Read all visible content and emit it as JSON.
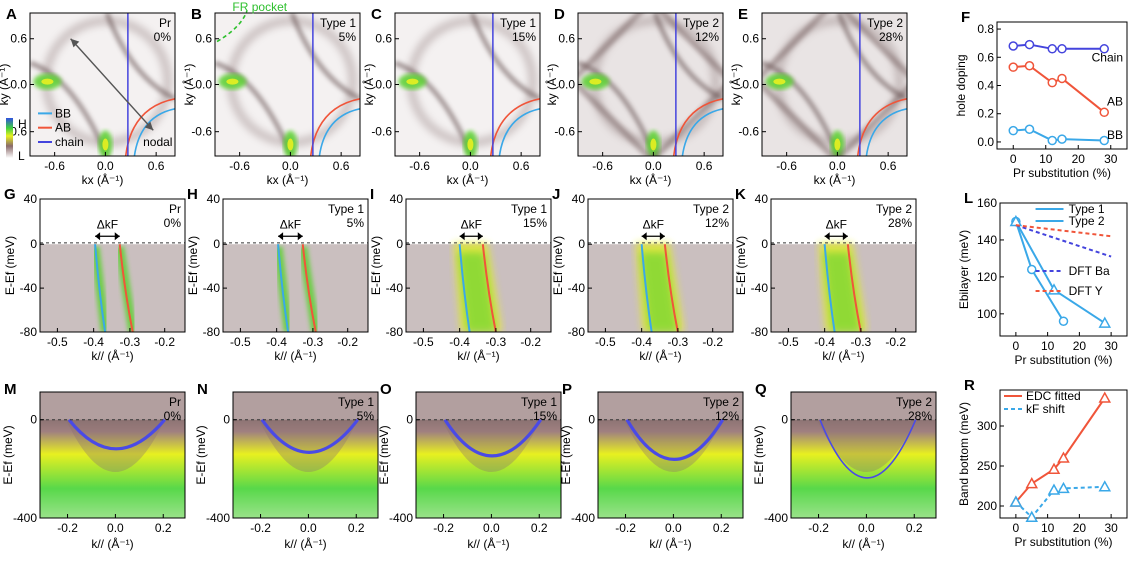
{
  "colors": {
    "bb": "#3aa8e8",
    "ab": "#f0553a",
    "chain": "#4444dd",
    "green": "#5ad12e",
    "yellow": "#e8f020",
    "dark": "#5a4040",
    "bg": "#ffffff"
  },
  "rowA": {
    "xlabel": "kx (Å⁻¹)",
    "ylabel": "ky (Å⁻¹)",
    "yticks": [
      "0.6",
      "0.0",
      "-0.6"
    ],
    "xticks": [
      "-0.6",
      "0.0",
      "0.6"
    ],
    "panels": [
      {
        "letter": "A",
        "tag1": "Pr",
        "tag2": "0%",
        "type": "pr"
      },
      {
        "letter": "B",
        "tag1": "Type 1",
        "tag2": "5%",
        "type": "t1"
      },
      {
        "letter": "C",
        "tag1": "Type 1",
        "tag2": "15%",
        "type": "t1"
      },
      {
        "letter": "D",
        "tag1": "Type 2",
        "tag2": "12%",
        "type": "t2"
      },
      {
        "letter": "E",
        "tag1": "Type 2",
        "tag2": "28%",
        "type": "t2"
      }
    ],
    "fr_pocket": "FR pocket",
    "nodal": "nodal",
    "colorbar": {
      "high": "H",
      "low": "L"
    },
    "legend": [
      "BB",
      "AB",
      "chain"
    ]
  },
  "rowG": {
    "xlabel": "k// (Å⁻¹)",
    "ylabel": "E-Ef (meV)",
    "yticks": [
      "40",
      "0",
      "-40",
      "-80"
    ],
    "xticks": [
      "-0.5",
      "-0.4",
      "-0.3",
      "-0.2"
    ],
    "dk": "ΔkF",
    "panels": [
      {
        "letter": "G",
        "tag1": "Pr",
        "tag2": "0%"
      },
      {
        "letter": "H",
        "tag1": "Type 1",
        "tag2": "5%"
      },
      {
        "letter": "I",
        "tag1": "Type 1",
        "tag2": "15%"
      },
      {
        "letter": "J",
        "tag1": "Type 2",
        "tag2": "12%"
      },
      {
        "letter": "K",
        "tag1": "Type 2",
        "tag2": "28%"
      }
    ]
  },
  "rowM": {
    "xlabel": "k// (Å⁻¹)",
    "ylabel": "E-Ef (meV)",
    "yticks": [
      "0",
      "-400"
    ],
    "xticks": [
      "-0.2",
      "0.0",
      "0.2"
    ],
    "panels": [
      {
        "letter": "M",
        "tag1": "Pr",
        "tag2": "0%"
      },
      {
        "letter": "N",
        "tag1": "Type 1",
        "tag2": "5%"
      },
      {
        "letter": "O",
        "tag1": "Type 1",
        "tag2": "15%"
      },
      {
        "letter": "P",
        "tag1": "Type 2",
        "tag2": "12%"
      },
      {
        "letter": "Q",
        "tag1": "Type 2",
        "tag2": "28%"
      }
    ]
  },
  "chart_data": [
    {
      "panel": "F",
      "type": "line",
      "xlabel": "Pr substitution (%)",
      "ylabel": "hole doping",
      "xlim": [
        -5,
        35
      ],
      "ylim": [
        -0.05,
        0.85
      ],
      "xticks": [
        "0",
        "10",
        "20",
        "30"
      ],
      "yticks": [
        "0.0",
        "0.2",
        "0.4",
        "0.6",
        "0.8"
      ],
      "series": [
        {
          "name": "Chain",
          "color": "#4444dd",
          "x": [
            0,
            5,
            12,
            15,
            28
          ],
          "y": [
            0.68,
            0.69,
            0.66,
            0.66,
            0.66
          ]
        },
        {
          "name": "AB",
          "color": "#f0553a",
          "x": [
            0,
            5,
            12,
            15,
            28
          ],
          "y": [
            0.53,
            0.54,
            0.42,
            0.45,
            0.21
          ]
        },
        {
          "name": "BB",
          "color": "#3aa8e8",
          "x": [
            0,
            5,
            12,
            15,
            28
          ],
          "y": [
            0.08,
            0.09,
            0.01,
            0.02,
            0.01
          ]
        }
      ]
    },
    {
      "panel": "L",
      "type": "line",
      "xlabel": "Pr substitution (%)",
      "ylabel": "Ebilayer (meV)",
      "xlim": [
        -5,
        35
      ],
      "ylim": [
        88,
        160
      ],
      "xticks": [
        "0",
        "10",
        "20",
        "30"
      ],
      "yticks": [
        "100",
        "120",
        "140",
        "160"
      ],
      "series": [
        {
          "name": "Type 1",
          "color": "#3aa8e8",
          "marker": "circle",
          "x": [
            0,
            5,
            15
          ],
          "y": [
            150,
            124,
            96
          ]
        },
        {
          "name": "Type 2",
          "color": "#3aa8e8",
          "marker": "triangle",
          "x": [
            0,
            12,
            28
          ],
          "y": [
            150,
            113,
            95
          ]
        },
        {
          "name": "DFT Ba",
          "color": "#4444dd",
          "dashed": true,
          "x": [
            0,
            30
          ],
          "y": [
            148,
            131
          ]
        },
        {
          "name": "DFT Y",
          "color": "#f0553a",
          "dashed": true,
          "x": [
            0,
            30
          ],
          "y": [
            148,
            142
          ]
        }
      ]
    },
    {
      "panel": "R",
      "type": "line",
      "xlabel": "Pr substitution (%)",
      "ylabel": "Band bottom (meV)",
      "xlim": [
        -5,
        35
      ],
      "ylim": [
        185,
        345
      ],
      "xticks": [
        "0",
        "10",
        "20",
        "30"
      ],
      "yticks": [
        "200",
        "250",
        "300"
      ],
      "series": [
        {
          "name": "EDC fitted",
          "color": "#f0553a",
          "marker": "triangle",
          "x": [
            0,
            5,
            12,
            15,
            28
          ],
          "y": [
            205,
            228,
            246,
            260,
            335
          ]
        },
        {
          "name": "kF shift",
          "color": "#3aa8e8",
          "marker": "triangle",
          "dashed": true,
          "x": [
            0,
            5,
            12,
            15,
            28
          ],
          "y": [
            205,
            186,
            220,
            222,
            224
          ]
        }
      ]
    }
  ]
}
